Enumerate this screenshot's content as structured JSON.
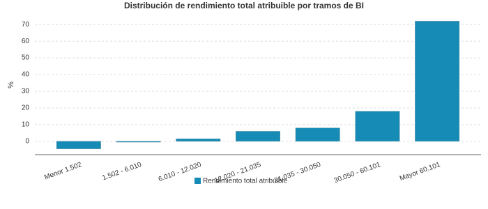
{
  "chart_data": {
    "type": "bar",
    "title": "Distribución de rendimiento total atribuible por tramos de BI",
    "y_label": "%",
    "categories": [
      "Menor 1.502",
      "1.502 - 6.010",
      "6.010 - 12.020",
      "12.020 - 21.035",
      "21.035 - 30.050",
      "30.050 - 60.101",
      "Mayor 60.101"
    ],
    "series": [
      {
        "name": "Rendimiento total atribuible",
        "color": "#168bb5",
        "values": [
          -4.5,
          -0.5,
          1.5,
          6,
          8,
          18,
          72
        ]
      }
    ],
    "ylim": [
      -8,
      73
    ],
    "yticks": [
      0,
      10,
      20,
      30,
      40,
      50,
      60,
      70
    ],
    "grid": true,
    "legend": "bottom"
  }
}
